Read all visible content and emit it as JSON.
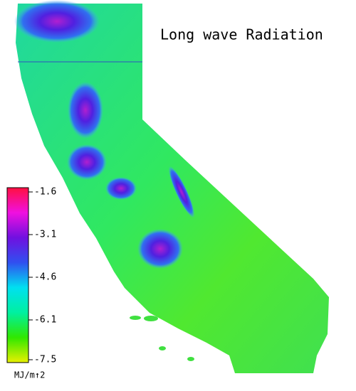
{
  "chart_data": {
    "type": "colorbar",
    "title": "Long wave Radiation",
    "unit": "MJ/m↑2",
    "ylim": [
      -7.6,
      -1.45
    ],
    "yticks": [
      -1.6,
      -3.1,
      -4.6,
      -6.1,
      -7.5
    ],
    "colorscale": [
      "#e8f000",
      "#30e800",
      "#00f0a0",
      "#00e0f0",
      "#3050f0",
      "#7010e0",
      "#f010e0",
      "#ff1040"
    ]
  }
}
